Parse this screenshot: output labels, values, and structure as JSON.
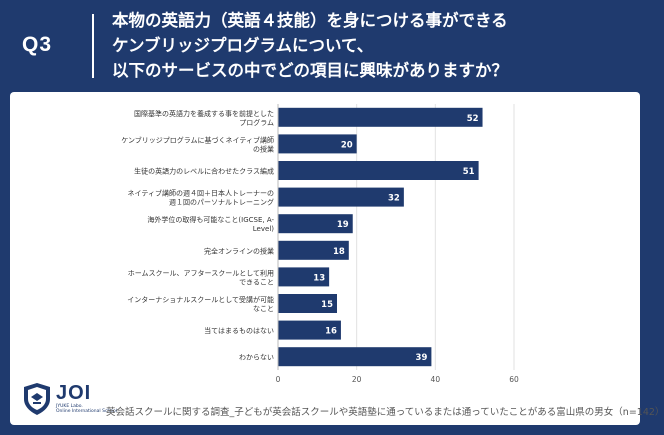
{
  "header": {
    "q_label": "Q3",
    "question_lines": [
      "本物の英語力（英語４技能）を身につける事ができる",
      "ケンブリッジプログラムについて、",
      "以下のサービスの中でどの項目に興味がありますか？"
    ]
  },
  "colors": {
    "background": "#1f3a6e",
    "bar": "#1f3a6e",
    "panel": "#ffffff"
  },
  "logo": {
    "name": "JOI",
    "subtitle_line1": "JYUKE Labo.",
    "subtitle_line2": "Online International School"
  },
  "footnote": "英会話スクールに関する調査_子どもが英会話スクールや英語塾に通っているまたは通っていたことがある富山県の男女（n=142）",
  "chart_data": {
    "type": "bar",
    "orientation": "horizontal",
    "categories": [
      [
        "国際基準の英語力を養成する事を前提とした",
        "プログラム"
      ],
      [
        "ケンブリッジプログラムに基づくネイティブ講師",
        "の授業"
      ],
      [
        "生徒の英語力のレベルに合わせたクラス編成"
      ],
      [
        "ネイティブ講師の週４回＋日本人トレーナーの",
        "週１回のパーソナルトレーニング"
      ],
      [
        "海外学位の取得も可能なこと(IGCSE, A-",
        "Level)"
      ],
      [
        "完全オンラインの授業"
      ],
      [
        "ホームスクール、アフタースクールとして利用",
        "できること"
      ],
      [
        "インターナショナルスクールとして受講が可能",
        "なこと"
      ],
      [
        "当てはまるものはない"
      ],
      [
        "わからない"
      ]
    ],
    "values": [
      52,
      20,
      51,
      32,
      19,
      18,
      13,
      15,
      16,
      39
    ],
    "xlim": [
      0,
      60
    ],
    "xticks": [
      0,
      20,
      40,
      60
    ],
    "grid": true
  }
}
